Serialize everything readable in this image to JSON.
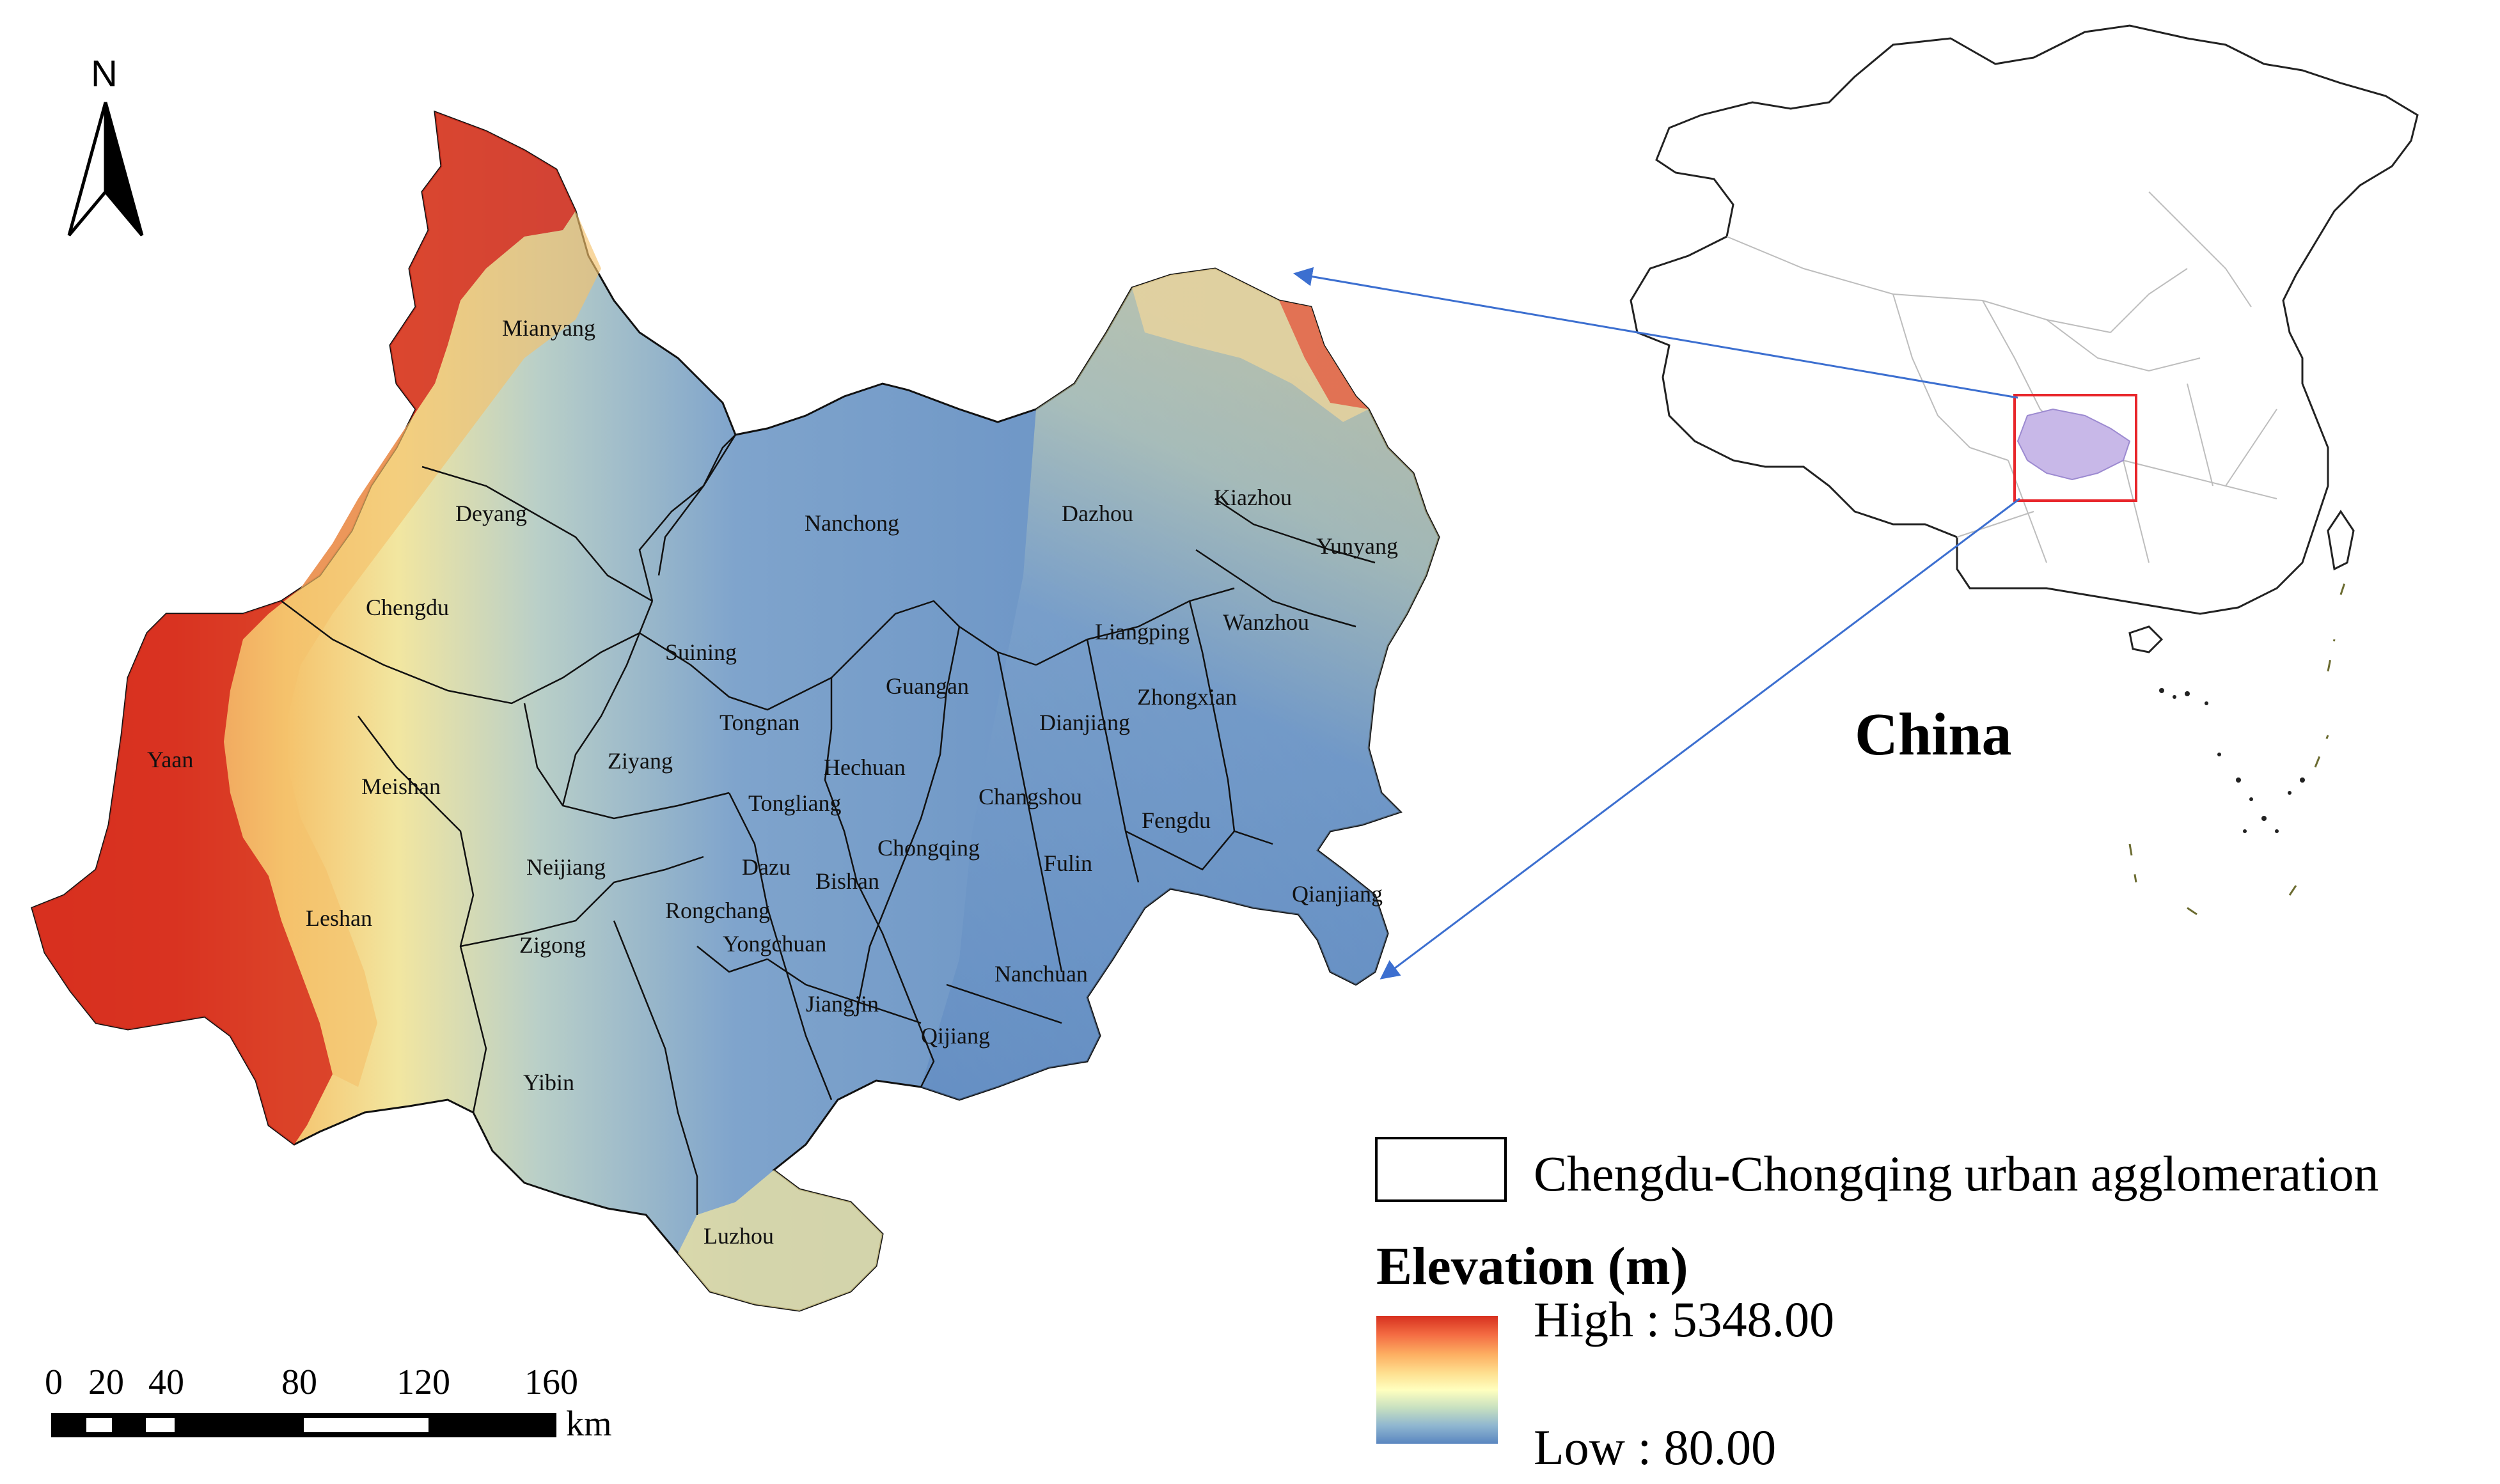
{
  "north_arrow": {
    "letter": "N"
  },
  "city_labels": [
    {
      "id": "mianyang",
      "name": "Mianyang"
    },
    {
      "id": "deyang",
      "name": "Deyang"
    },
    {
      "id": "chengdu",
      "name": "Chengdu"
    },
    {
      "id": "yaan",
      "name": "Yaan"
    },
    {
      "id": "meishan",
      "name": "Meishan"
    },
    {
      "id": "leshan",
      "name": "Leshan"
    },
    {
      "id": "neijiang",
      "name": "Neijiang"
    },
    {
      "id": "zigong",
      "name": "Zigong"
    },
    {
      "id": "yibin",
      "name": "Yibin"
    },
    {
      "id": "luzhou",
      "name": "Luzhou"
    },
    {
      "id": "ziyang",
      "name": "Ziyang"
    },
    {
      "id": "suining",
      "name": "Suining"
    },
    {
      "id": "nanchong",
      "name": "Nanchong"
    },
    {
      "id": "dazhou",
      "name": "Dazhou"
    },
    {
      "id": "kiazhou",
      "name": "Kiazhou"
    },
    {
      "id": "yunyang",
      "name": "Yunyang"
    },
    {
      "id": "wanzhou",
      "name": "Wanzhou"
    },
    {
      "id": "liangping",
      "name": "Liangping"
    },
    {
      "id": "zhongxian",
      "name": "Zhongxian"
    },
    {
      "id": "guangan",
      "name": "Guangan"
    },
    {
      "id": "tongnan",
      "name": "Tongnan"
    },
    {
      "id": "hechuan",
      "name": "Hechuan"
    },
    {
      "id": "dianjiang",
      "name": "Dianjiang"
    },
    {
      "id": "tongliang",
      "name": "Tongliang"
    },
    {
      "id": "changshou",
      "name": "Changshou"
    },
    {
      "id": "chongqing",
      "name": "Chongqing"
    },
    {
      "id": "dazu",
      "name": "Dazu"
    },
    {
      "id": "bishan",
      "name": "Bishan"
    },
    {
      "id": "fengdu",
      "name": "Fengdu"
    },
    {
      "id": "fulin",
      "name": "Fulin"
    },
    {
      "id": "rongchang",
      "name": "Rongchang"
    },
    {
      "id": "yongchuan",
      "name": "Yongchuan"
    },
    {
      "id": "qianjiang",
      "name": "Qianjiang"
    },
    {
      "id": "nanchuan",
      "name": "Nanchuan"
    },
    {
      "id": "jiangjin",
      "name": "Jiangjin"
    },
    {
      "id": "qijiang",
      "name": "Qijiang"
    }
  ],
  "inset": {
    "title": "China"
  },
  "legend": {
    "region_label": "Chengdu-Chongqing urban agglomeration",
    "elevation_title": "Elevation (m)",
    "high_label": "High : 5348.00",
    "low_label": "Low : 80.00",
    "high_value": 5348.0,
    "low_value": 80.0,
    "ramp_colors": [
      "#d7301f",
      "#f46d43",
      "#fdae61",
      "#fee090",
      "#ffffbf",
      "#c7e0c0",
      "#8fb6d0",
      "#5a86c0"
    ]
  },
  "scale_bar": {
    "ticks": [
      "0",
      "20",
      "40",
      "80",
      "120",
      "160"
    ],
    "unit": "km"
  },
  "colors": {
    "lowland": "#5a86c0",
    "mid": "#f2e6a0",
    "high": "#d7301f",
    "highlight_box": "#e8262b",
    "inset_fill": "#c8b8e8",
    "arrow": "#3c6fd0"
  }
}
